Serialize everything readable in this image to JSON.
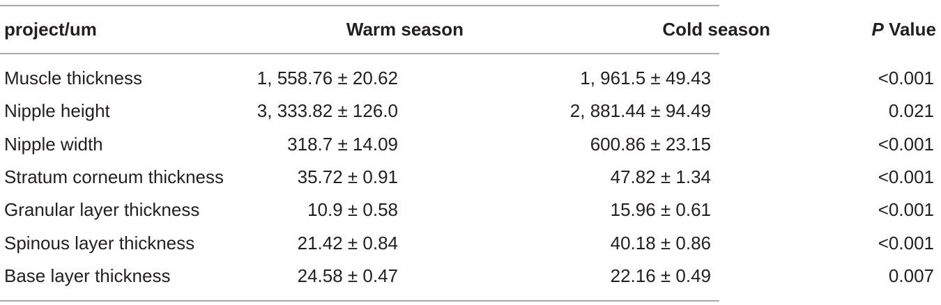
{
  "table": {
    "header": [
      "project/um",
      "Warm season",
      "Cold season",
      {
        "italic": "P",
        "rest": "Value"
      }
    ],
    "rows": [
      [
        "Muscle thickness",
        "1, 558.76 ± 20.62",
        "1, 961.5 ± 49.43",
        "<0.001"
      ],
      [
        "Nipple height",
        "3, 333.82 ± 126.0",
        "2, 881.44 ± 94.49",
        "0.021"
      ],
      [
        "Nipple width",
        "318.7 ± 14.09",
        "600.86 ± 23.15",
        "<0.001"
      ],
      [
        "Stratum corneum thickness",
        "35.72 ± 0.91",
        "47.82 ± 1.34",
        "<0.001"
      ],
      [
        "Granular layer thickness",
        "10.9 ± 0.58",
        "15.96 ± 0.61",
        "<0.001"
      ],
      [
        "Spinous layer thickness",
        "21.42 ± 0.84",
        "40.18 ± 0.86",
        "<0.001"
      ],
      [
        "Base layer thickness",
        "24.58 ± 0.47",
        "22.16 ± 0.49",
        "0.007"
      ]
    ]
  }
}
